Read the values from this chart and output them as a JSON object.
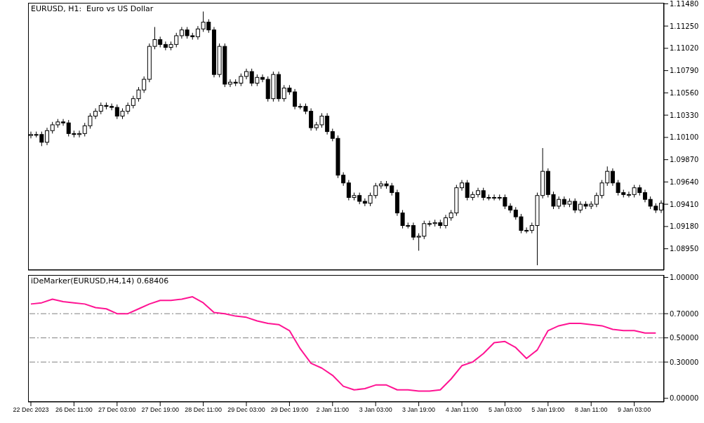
{
  "chart_data": [
    {
      "type": "candlestick",
      "title": "EURUSD, H1:  Euro vs US Dollar",
      "color": "#000000",
      "ylim": [
        1.0873,
        1.1149
      ],
      "tick_labels": "y",
      "yticks": [
        {
          "value": 1.1148,
          "label": "1.11480"
        },
        {
          "value": 1.1125,
          "label": "1.11250"
        },
        {
          "value": 1.1102,
          "label": "1.11020"
        },
        {
          "value": 1.1079,
          "label": "1.10790"
        },
        {
          "value": 1.1056,
          "label": "1.10560"
        },
        {
          "value": 1.1033,
          "label": "1.10330"
        },
        {
          "value": 1.101,
          "label": "1.10100"
        },
        {
          "value": 1.0987,
          "label": "1.09870"
        },
        {
          "value": 1.0964,
          "label": "1.09640"
        },
        {
          "value": 1.0941,
          "label": "1.09410"
        },
        {
          "value": 1.0918,
          "label": "1.09180"
        },
        {
          "value": 1.0895,
          "label": "1.08950"
        }
      ],
      "categories": [
        null,
        null,
        null,
        null,
        null,
        null,
        null,
        null,
        null,
        null,
        null,
        null,
        null,
        null,
        null,
        null,
        null,
        null,
        null,
        null,
        null,
        null,
        null,
        null,
        null,
        null,
        null,
        null,
        null,
        null,
        null,
        null,
        null,
        null,
        null,
        null,
        null,
        null,
        null,
        null,
        null,
        null,
        null,
        null,
        null,
        null,
        null,
        null,
        null,
        null,
        null,
        null,
        null,
        null,
        null,
        null,
        null,
        null,
        null,
        null,
        null,
        null,
        null,
        null,
        null,
        null,
        null,
        null,
        null,
        null,
        null,
        null,
        null,
        null,
        null,
        null,
        null,
        null,
        null,
        null,
        null,
        null,
        null,
        null,
        null,
        null,
        null,
        null,
        null,
        null,
        null,
        null,
        null,
        null,
        null,
        null,
        null,
        null,
        null,
        null,
        null,
        null,
        null,
        null,
        null,
        null,
        null,
        null,
        null,
        null,
        null,
        null,
        null,
        null,
        null,
        null,
        null,
        null
      ],
      "ohlc": [
        [
          1.1012,
          1.1016,
          1.1009,
          1.1013
        ],
        [
          1.1013,
          1.1016,
          1.101,
          1.1013
        ],
        [
          1.1013,
          1.1016,
          1.1001,
          1.1005
        ],
        [
          1.1005,
          1.102,
          1.1002,
          1.1017
        ],
        [
          1.1017,
          1.1026,
          1.1014,
          1.1023
        ],
        [
          1.1023,
          1.1029,
          1.102,
          1.1026
        ],
        [
          1.1026,
          1.1029,
          1.1022,
          1.1025
        ],
        [
          1.1025,
          1.1028,
          1.1011,
          1.1014
        ],
        [
          1.1014,
          1.1017,
          1.101,
          1.1013
        ],
        [
          1.1013,
          1.1017,
          1.101,
          1.1014
        ],
        [
          1.1014,
          1.1025,
          1.1011,
          1.1022
        ],
        [
          1.1022,
          1.1035,
          1.1019,
          1.1032
        ],
        [
          1.1032,
          1.104,
          1.1029,
          1.1037
        ],
        [
          1.1037,
          1.1046,
          1.1034,
          1.1043
        ],
        [
          1.1043,
          1.1046,
          1.1039,
          1.1042
        ],
        [
          1.1042,
          1.1045,
          1.1038,
          1.1041
        ],
        [
          1.1041,
          1.1044,
          1.1029,
          1.1032
        ],
        [
          1.1032,
          1.104,
          1.1029,
          1.1037
        ],
        [
          1.1037,
          1.1046,
          1.1034,
          1.1043
        ],
        [
          1.1043,
          1.1053,
          1.104,
          1.105
        ],
        [
          1.105,
          1.1062,
          1.1047,
          1.1059
        ],
        [
          1.1059,
          1.1073,
          1.1056,
          1.107
        ],
        [
          1.107,
          1.1107,
          1.1067,
          1.1104
        ],
        [
          1.1104,
          1.1124,
          1.1101,
          1.1111
        ],
        [
          1.1111,
          1.1114,
          1.1103,
          1.1106
        ],
        [
          1.1106,
          1.1109,
          1.11,
          1.1103
        ],
        [
          1.1103,
          1.1109,
          1.11,
          1.1106
        ],
        [
          1.1106,
          1.1118,
          1.1103,
          1.1115
        ],
        [
          1.1115,
          1.1124,
          1.1112,
          1.1121
        ],
        [
          1.1121,
          1.1124,
          1.1112,
          1.1115
        ],
        [
          1.1115,
          1.1118,
          1.1111,
          1.1114
        ],
        [
          1.1114,
          1.1125,
          1.1111,
          1.1122
        ],
        [
          1.1122,
          1.114,
          1.1119,
          1.1129
        ],
        [
          1.1129,
          1.1132,
          1.1118,
          1.1121
        ],
        [
          1.1121,
          1.1124,
          1.1072,
          1.1075
        ],
        [
          1.1075,
          1.1107,
          1.1072,
          1.1104
        ],
        [
          1.1104,
          1.1107,
          1.1062,
          1.1065
        ],
        [
          1.1065,
          1.107,
          1.1062,
          1.1067
        ],
        [
          1.1067,
          1.107,
          1.1063,
          1.1066
        ],
        [
          1.1066,
          1.1076,
          1.1063,
          1.1073
        ],
        [
          1.1073,
          1.1081,
          1.107,
          1.1078
        ],
        [
          1.1078,
          1.1081,
          1.1063,
          1.1066
        ],
        [
          1.1066,
          1.1075,
          1.1063,
          1.1072
        ],
        [
          1.1072,
          1.1075,
          1.1067,
          1.107
        ],
        [
          1.107,
          1.1073,
          1.1047,
          1.105
        ],
        [
          1.105,
          1.1078,
          1.1047,
          1.1075
        ],
        [
          1.1075,
          1.1078,
          1.1047,
          1.105
        ],
        [
          1.105,
          1.1064,
          1.1047,
          1.1061
        ],
        [
          1.1061,
          1.1064,
          1.1054,
          1.1057
        ],
        [
          1.1057,
          1.106,
          1.1039,
          1.1042
        ],
        [
          1.1042,
          1.1045,
          1.1039,
          1.1042
        ],
        [
          1.1042,
          1.1045,
          1.1034,
          1.1037
        ],
        [
          1.1037,
          1.104,
          1.1017,
          1.102
        ],
        [
          1.102,
          1.1026,
          1.1017,
          1.1023
        ],
        [
          1.1023,
          1.1035,
          1.102,
          1.1032
        ],
        [
          1.1032,
          1.1035,
          1.1013,
          1.1016
        ],
        [
          1.1016,
          1.1019,
          1.1006,
          1.1009
        ],
        [
          1.1009,
          1.1012,
          1.0968,
          1.0971
        ],
        [
          1.0971,
          1.0974,
          1.096,
          1.0963
        ],
        [
          1.0963,
          1.0966,
          1.0945,
          1.0948
        ],
        [
          1.0948,
          1.0953,
          1.0945,
          1.095
        ],
        [
          1.095,
          1.0953,
          1.0941,
          1.0944
        ],
        [
          1.0944,
          1.0947,
          1.0939,
          1.0942
        ],
        [
          1.0942,
          1.0953,
          1.0939,
          1.095
        ],
        [
          1.095,
          1.0963,
          1.0947,
          1.096
        ],
        [
          1.096,
          1.0965,
          1.0957,
          1.0962
        ],
        [
          1.0962,
          1.0965,
          1.0957,
          1.096
        ],
        [
          1.096,
          1.0963,
          1.095,
          1.0953
        ],
        [
          1.0953,
          1.0956,
          1.0929,
          1.0932
        ],
        [
          1.0932,
          1.0935,
          1.0916,
          1.0919
        ],
        [
          1.0919,
          1.0922,
          1.0916,
          1.0919
        ],
        [
          1.0919,
          1.0922,
          1.0904,
          1.0907
        ],
        [
          1.0907,
          1.0911,
          1.0893,
          1.0908
        ],
        [
          1.0908,
          1.0924,
          1.0905,
          1.0921
        ],
        [
          1.0921,
          1.0924,
          1.0918,
          1.0921
        ],
        [
          1.0921,
          1.0925,
          1.0918,
          1.0922
        ],
        [
          1.0922,
          1.0925,
          1.0916,
          1.0919
        ],
        [
          1.0919,
          1.093,
          1.0916,
          1.0927
        ],
        [
          1.0927,
          1.0935,
          1.0924,
          1.0932
        ],
        [
          1.0932,
          1.0961,
          1.0929,
          1.0958
        ],
        [
          1.0958,
          1.0966,
          1.0955,
          1.0963
        ],
        [
          1.0963,
          1.0966,
          1.0945,
          1.0948
        ],
        [
          1.0948,
          1.0954,
          1.0945,
          1.0951
        ],
        [
          1.0951,
          1.0958,
          1.0948,
          1.0955
        ],
        [
          1.0955,
          1.0958,
          1.0945,
          1.0948
        ],
        [
          1.0948,
          1.0951,
          1.0945,
          1.0948
        ],
        [
          1.0948,
          1.0951,
          1.0945,
          1.0948
        ],
        [
          1.0948,
          1.0951,
          1.0945,
          1.0948
        ],
        [
          1.0948,
          1.0951,
          1.0936,
          1.0939
        ],
        [
          1.0939,
          1.0942,
          1.0932,
          1.0935
        ],
        [
          1.0935,
          1.0938,
          1.0925,
          1.0928
        ],
        [
          1.0928,
          1.0931,
          1.0911,
          1.0914
        ],
        [
          1.0914,
          1.0917,
          1.0911,
          1.0914
        ],
        [
          1.0914,
          1.0922,
          1.0911,
          1.0919
        ],
        [
          1.0919,
          1.0953,
          1.0878,
          1.095
        ],
        [
          1.095,
          1.0999,
          1.0947,
          1.0975
        ],
        [
          1.0975,
          1.0978,
          1.0948,
          1.0951
        ],
        [
          1.0951,
          1.0954,
          1.0936,
          1.0939
        ],
        [
          1.0939,
          1.0949,
          1.0936,
          1.0946
        ],
        [
          1.0946,
          1.0949,
          1.0938,
          1.0941
        ],
        [
          1.0941,
          1.0947,
          1.0938,
          1.0944
        ],
        [
          1.0944,
          1.0947,
          1.0932,
          1.0935
        ],
        [
          1.0935,
          1.0944,
          1.0932,
          1.0941
        ],
        [
          1.0941,
          1.0944,
          1.0936,
          1.0939
        ],
        [
          1.0939,
          1.0944,
          1.0936,
          1.0941
        ],
        [
          1.0941,
          1.0953,
          1.0938,
          1.095
        ],
        [
          1.095,
          1.0966,
          1.0947,
          1.0963
        ],
        [
          1.0963,
          1.098,
          1.096,
          1.0975
        ],
        [
          1.0975,
          1.0978,
          1.096,
          1.0963
        ],
        [
          1.0963,
          1.0966,
          1.095,
          1.0953
        ],
        [
          1.0953,
          1.0956,
          1.0948,
          1.0951
        ],
        [
          1.0951,
          1.0954,
          1.0948,
          1.0951
        ],
        [
          1.0951,
          1.0961,
          1.0948,
          1.0958
        ],
        [
          1.0958,
          1.0961,
          1.095,
          1.0953
        ],
        [
          1.0953,
          1.0956,
          1.0943,
          1.0946
        ],
        [
          1.0946,
          1.0949,
          1.0936,
          1.0939
        ],
        [
          1.0939,
          1.0942,
          1.0932,
          1.0935
        ],
        [
          1.0935,
          1.0945,
          1.0932,
          1.0942
        ]
      ]
    },
    {
      "type": "line",
      "title": "iDeMarker(EURUSD,H4,14) 0.68406",
      "ylim": [
        -0.03,
        1.02
      ],
      "marker": "none",
      "line_style": "solid",
      "yticks": [
        {
          "value": 1,
          "label": "1.00000"
        },
        {
          "value": 0.7,
          "label": "0.70000"
        },
        {
          "value": 0.5,
          "label": "0.50000"
        },
        {
          "value": 0.3,
          "label": "0.30000"
        },
        {
          "value": 0,
          "label": "0.00000"
        }
      ],
      "categories": [
        "22 Dec 2023",
        null,
        null,
        null,
        "26 Dec 11:00",
        null,
        null,
        null,
        "27 Dec 03:00",
        null,
        null,
        null,
        "27 Dec 19:00",
        null,
        null,
        null,
        "28 Dec 11:00",
        null,
        null,
        null,
        "29 Dec 03:00",
        null,
        null,
        null,
        "29 Dec 19:00",
        null,
        null,
        null,
        "2 Jan 11:00",
        null,
        null,
        null,
        "3 Jan 03:00",
        null,
        null,
        null,
        "3 Jan 19:00",
        null,
        null,
        null,
        "4 Jan 11:00",
        null,
        null,
        null,
        "5 Jan 03:00",
        null,
        null,
        null,
        "5 Jan 19:00",
        null,
        null,
        null,
        "8 Jan 11:00",
        null,
        null,
        null,
        "9 Jan 03:00",
        null,
        null
      ],
      "ref_lines": [
        {
          "axis": "y",
          "value": 0.7,
          "color": "#808080",
          "line_style": "dashed"
        },
        {
          "axis": "y",
          "value": 0.5,
          "color": "#808080",
          "line_style": "dashed"
        },
        {
          "axis": "y",
          "value": 0.3,
          "color": "#808080",
          "line_style": "dashed"
        }
      ],
      "series": [
        {
          "color": "#ff1493",
          "values": [
            0.78,
            0.79,
            0.82,
            0.8,
            0.79,
            0.78,
            0.75,
            0.74,
            0.7,
            0.7,
            0.74,
            0.78,
            0.81,
            0.81,
            0.82,
            0.84,
            0.79,
            0.71,
            0.7,
            0.68,
            0.67,
            0.64,
            0.62,
            0.61,
            0.56,
            0.41,
            0.29,
            0.25,
            0.19,
            0.1,
            0.07,
            0.08,
            0.11,
            0.11,
            0.07,
            0.07,
            0.06,
            0.06,
            0.07,
            0.16,
            0.27,
            0.3,
            0.37,
            0.46,
            0.47,
            0.42,
            0.33,
            0.4,
            0.56,
            0.6,
            0.62,
            0.62,
            0.61,
            0.6,
            0.57,
            0.56,
            0.56,
            0.54,
            0.54
          ]
        }
      ]
    }
  ]
}
